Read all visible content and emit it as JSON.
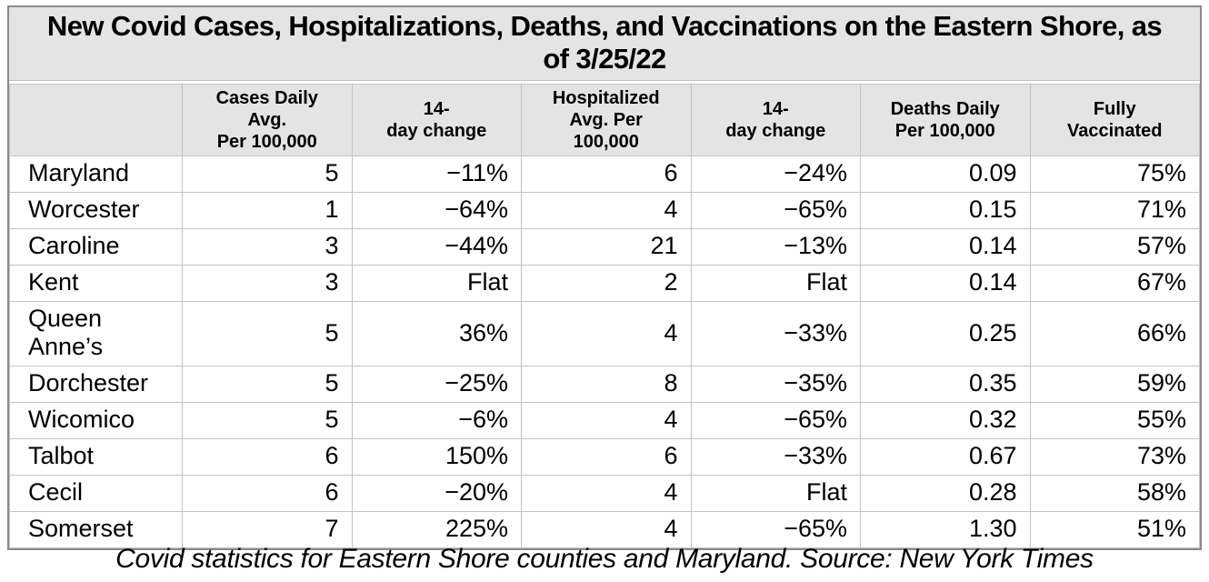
{
  "chart_data": {
    "type": "table",
    "title": "New Covid Cases, Hospitalizations, Deaths, and Vaccinations on the Eastern Shore, as of 3/25/22",
    "caption": "Covid statistics for Eastern Shore counties and Maryland. Source: New York Times",
    "columns": [
      "",
      "Cases Daily Avg. Per 100,000",
      "14-day change",
      "Hospitalized Avg. Per 100,000",
      "14-day change",
      "Deaths Daily Per 100,000",
      "Fully Vaccinated"
    ],
    "rows": [
      {
        "name": "Maryland",
        "values": [
          "5",
          "−11%",
          "6",
          "−24%",
          "0.09",
          "75%"
        ]
      },
      {
        "name": "Worcester",
        "values": [
          "1",
          "−64%",
          "4",
          "−65%",
          "0.15",
          "71%"
        ]
      },
      {
        "name": "Caroline",
        "values": [
          "3",
          "−44%",
          "21",
          "−13%",
          "0.14",
          "57%"
        ]
      },
      {
        "name": "Kent",
        "values": [
          "3",
          "Flat",
          "2",
          "Flat",
          "0.14",
          "67%"
        ]
      },
      {
        "name": "Queen Anne’s",
        "values": [
          "5",
          "36%",
          "4",
          "−33%",
          "0.25",
          "66%"
        ]
      },
      {
        "name": "Dorchester",
        "values": [
          "5",
          "−25%",
          "8",
          "−35%",
          "0.35",
          "59%"
        ]
      },
      {
        "name": "Wicomico",
        "values": [
          "5",
          "−6%",
          "4",
          "−65%",
          "0.32",
          "55%"
        ]
      },
      {
        "name": "Talbot",
        "values": [
          "6",
          "150%",
          "6",
          "−33%",
          "0.67",
          "73%"
        ]
      },
      {
        "name": "Cecil",
        "values": [
          "6",
          "−20%",
          "4",
          "Flat",
          "0.28",
          "58%"
        ]
      },
      {
        "name": "Somerset",
        "values": [
          "7",
          "225%",
          "4",
          "−65%",
          "1.30",
          "51%"
        ]
      }
    ],
    "layout_hints": {
      "header_background": "#e4e4e4",
      "grid": true
    }
  },
  "display": {
    "headers": [
      "",
      "Cases Daily\nAvg.\nPer 100,000",
      "14-\nday change",
      "Hospitalized\nAvg. Per\n100,000",
      "14-\nday change",
      "Deaths Daily\nPer 100,000",
      "Fully\nVaccinated"
    ]
  },
  "colors": {
    "header_background": "#e4e4e4",
    "inner_border": "#c3c3c3",
    "outer_border": "#8a8a8a",
    "text": "#000000",
    "page_background": "#ffffff"
  }
}
